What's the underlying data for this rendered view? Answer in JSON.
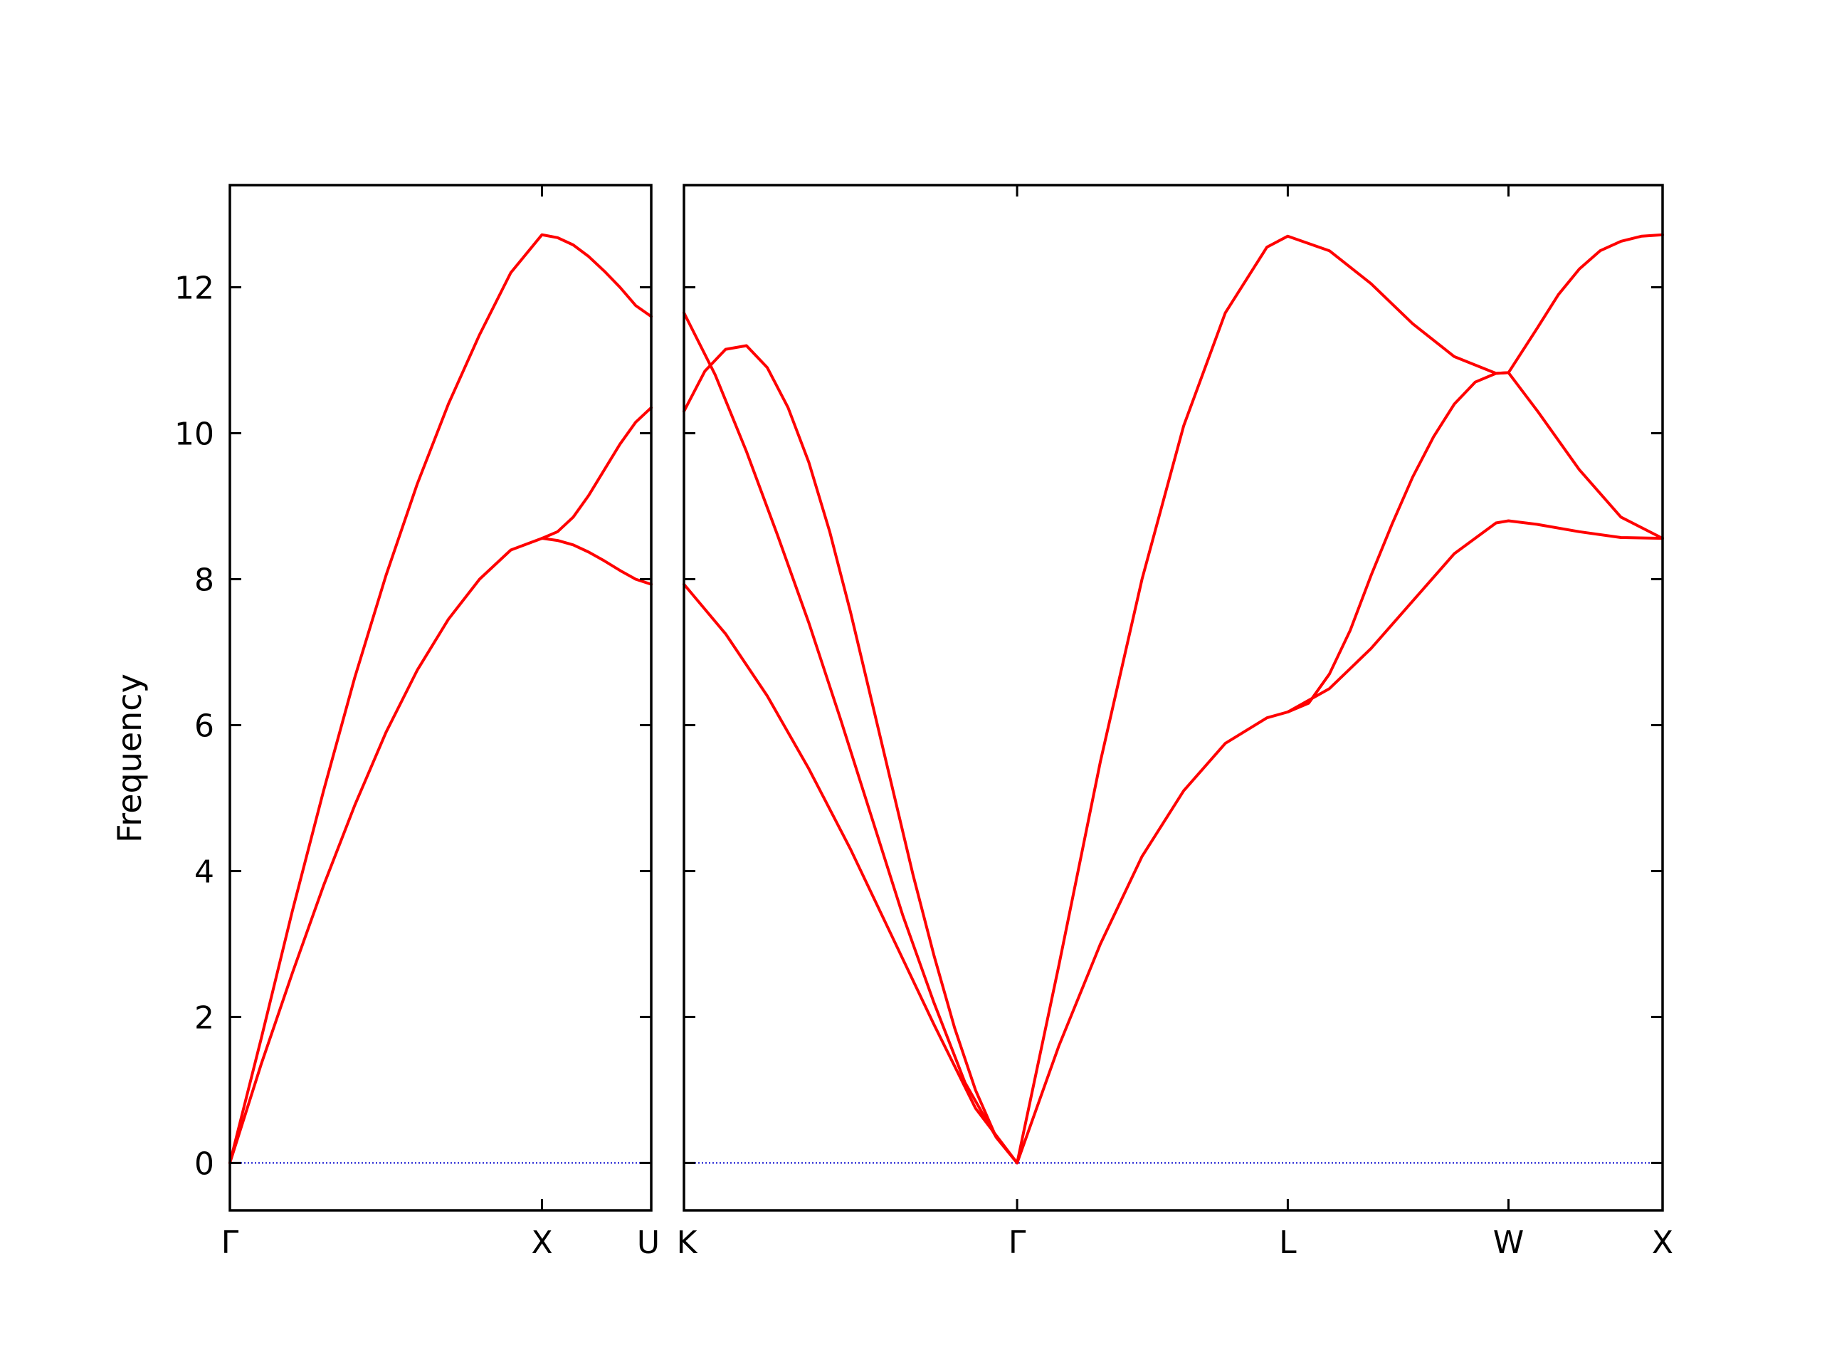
{
  "chart_data": {
    "type": "line",
    "title": "",
    "ylabel": "Frequency",
    "ylim": [
      -0.65,
      13.4
    ],
    "yticks": [
      "0",
      "2",
      "4",
      "6",
      "8",
      "10",
      "12"
    ],
    "grid": false,
    "colors": {
      "band": "#ff0000",
      "zero_line": "#0000cc",
      "axes": "#000000"
    },
    "panels": [
      {
        "name": "panel-gamma-x-u",
        "xlim": [
          0,
          1.35
        ],
        "kpoints": [
          {
            "label": "Γ",
            "x": 0
          },
          {
            "label": "X",
            "x": 1.0
          },
          {
            "label": "U",
            "x": 1.35
          }
        ],
        "series": [
          {
            "x": [
              0,
              0.1,
              0.2,
              0.3,
              0.4,
              0.5,
              0.6,
              0.7,
              0.8,
              0.9,
              1.0,
              1.05,
              1.1,
              1.15,
              1.2,
              1.25,
              1.3,
              1.35
            ],
            "y": [
              0,
              1.7,
              3.45,
              5.1,
              6.65,
              8.05,
              9.3,
              10.4,
              11.35,
              12.2,
              12.72,
              12.68,
              12.58,
              12.42,
              12.22,
              12.0,
              11.75,
              11.6
            ]
          },
          {
            "x": [
              0,
              0.1,
              0.2,
              0.3,
              0.4,
              0.5,
              0.6,
              0.7,
              0.8,
              0.9,
              1.0,
              1.05,
              1.1,
              1.15,
              1.2,
              1.25,
              1.3,
              1.35
            ],
            "y": [
              0,
              1.35,
              2.6,
              3.8,
              4.9,
              5.9,
              6.75,
              7.45,
              8.0,
              8.4,
              8.56,
              8.65,
              8.85,
              9.15,
              9.5,
              9.85,
              10.15,
              10.35
            ]
          },
          {
            "x": [
              1.0,
              1.05,
              1.1,
              1.15,
              1.2,
              1.25,
              1.3,
              1.35
            ],
            "y": [
              8.56,
              8.53,
              8.47,
              8.37,
              8.25,
              8.12,
              8.0,
              7.93
            ]
          }
        ]
      },
      {
        "name": "panel-k-gamma-l-w-x",
        "xlim": [
          0,
          4.7
        ],
        "kpoints": [
          {
            "label": "K",
            "x": 0
          },
          {
            "label": "Γ",
            "x": 1.6
          },
          {
            "label": "L",
            "x": 2.9
          },
          {
            "label": "W",
            "x": 3.96
          },
          {
            "label": "X",
            "x": 4.7
          }
        ],
        "series": [
          {
            "x": [
              0,
              0.2,
              0.4,
              0.6,
              0.8,
              1.0,
              1.2,
              1.4,
              1.6,
              1.8,
              2.0,
              2.2,
              2.4,
              2.6,
              2.8,
              2.9,
              3.1,
              3.3,
              3.5,
              3.7,
              3.9,
              3.96,
              4.1,
              4.3,
              4.5,
              4.7
            ],
            "y": [
              7.93,
              7.25,
              6.4,
              5.4,
              4.3,
              3.1,
              1.9,
              0.75,
              0,
              1.6,
              3.0,
              4.2,
              5.1,
              5.75,
              6.1,
              6.18,
              6.5,
              7.05,
              7.7,
              8.35,
              8.77,
              8.8,
              8.75,
              8.65,
              8.57,
              8.56
            ]
          },
          {
            "x": [
              0,
              0.15,
              0.3,
              0.45,
              0.6,
              0.75,
              0.9,
              1.05,
              1.2,
              1.35,
              1.5,
              1.6,
              1.8,
              2.0,
              2.2,
              2.4,
              2.6,
              2.8,
              2.9,
              3.1,
              3.3,
              3.5,
              3.7,
              3.9,
              3.96,
              4.1,
              4.3,
              4.5,
              4.7
            ],
            "y": [
              11.65,
              10.8,
              9.75,
              8.6,
              7.4,
              6.1,
              4.75,
              3.4,
              2.2,
              1.1,
              0.35,
              0,
              2.7,
              5.5,
              8.0,
              10.1,
              11.65,
              12.55,
              12.7,
              12.5,
              12.05,
              11.5,
              11.05,
              10.82,
              10.83,
              10.3,
              9.5,
              8.85,
              8.56
            ]
          },
          {
            "x": [
              0,
              0.1,
              0.2,
              0.3,
              0.4,
              0.5,
              0.6,
              0.7,
              0.8,
              0.9,
              1.0,
              1.1,
              1.2,
              1.3,
              1.4,
              1.5,
              1.6
            ],
            "y": [
              10.3,
              10.85,
              11.15,
              11.2,
              10.9,
              10.35,
              9.6,
              8.65,
              7.55,
              6.35,
              5.15,
              3.95,
              2.85,
              1.85,
              1.0,
              0.35,
              0
            ]
          },
          {
            "x": [
              2.9,
              3.0,
              3.1,
              3.2,
              3.3,
              3.4,
              3.5,
              3.6,
              3.7,
              3.8,
              3.9,
              3.96,
              4.1,
              4.2,
              4.3,
              4.4,
              4.5,
              4.6,
              4.7
            ],
            "y": [
              6.18,
              6.3,
              6.7,
              7.3,
              8.05,
              8.75,
              9.4,
              9.95,
              10.4,
              10.7,
              10.82,
              10.83,
              11.45,
              11.9,
              12.25,
              12.5,
              12.63,
              12.7,
              12.72
            ]
          }
        ]
      }
    ]
  }
}
